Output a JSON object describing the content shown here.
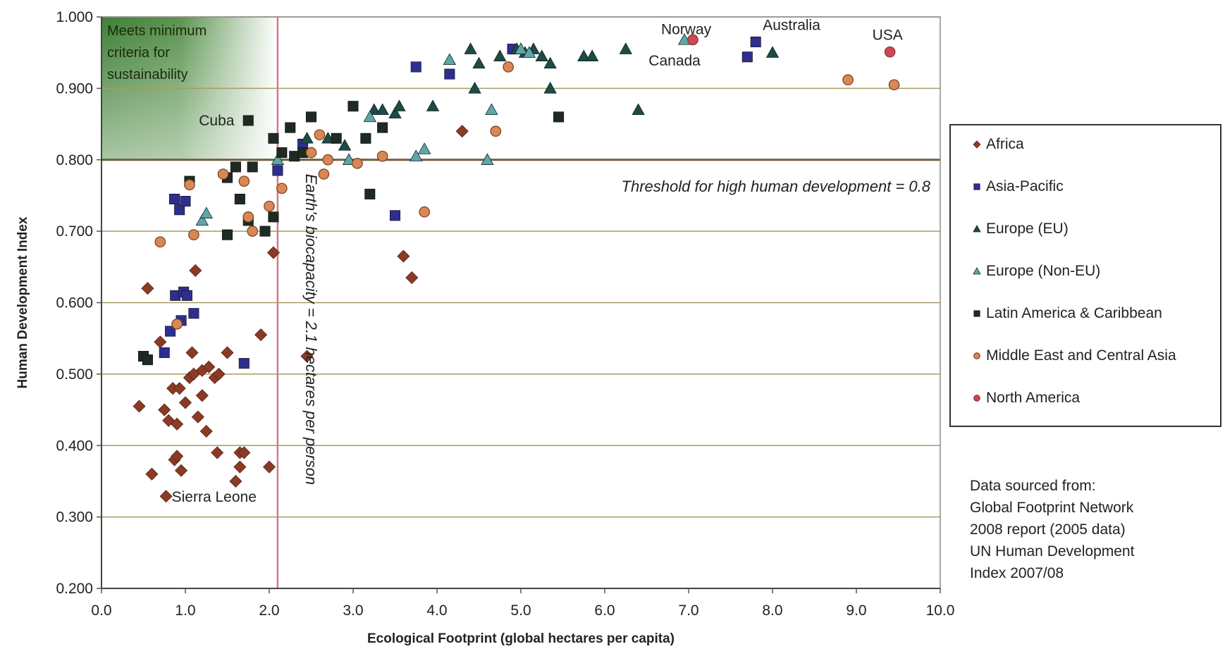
{
  "chart_data": {
    "type": "scatter",
    "xlabel": "Ecological Footprint (global hectares per capita)",
    "ylabel": "Human Development Index",
    "xlim": [
      0,
      10
    ],
    "ylim": [
      0.2,
      1.0
    ],
    "x_ticks": [
      "0.0",
      "1.0",
      "2.0",
      "3.0",
      "4.0",
      "5.0",
      "6.0",
      "7.0",
      "8.0",
      "9.0",
      "10.0"
    ],
    "y_ticks": [
      "0.200",
      "0.300",
      "0.400",
      "0.500",
      "0.600",
      "0.700",
      "0.800",
      "0.900",
      "1.000"
    ],
    "grid": "horizontal",
    "legend_position": "right",
    "reference_lines": {
      "hdi_threshold": {
        "value": 0.8,
        "label": "Threshold for high human development = 0.8"
      },
      "biocapacity": {
        "value": 2.1,
        "label": "Earth's biocapacity = 2.1 hectares per person"
      }
    },
    "sustainability_box": {
      "x": [
        0,
        2.1
      ],
      "y": [
        0.8,
        1.0
      ],
      "label": [
        "Meets minimum",
        "criteria for",
        "sustainability"
      ]
    },
    "annotations": [
      {
        "text": "Norway",
        "x": 7.05,
        "y": 0.968
      },
      {
        "text": "Australia",
        "x": 7.8,
        "y": 0.965
      },
      {
        "text": "USA",
        "x": 9.4,
        "y": 0.951
      },
      {
        "text": "Canada",
        "x": 7.7,
        "y": 0.944
      },
      {
        "text": "Cuba",
        "x": 1.75,
        "y": 0.855
      },
      {
        "text": "Sierra Leone",
        "x": 0.77,
        "y": 0.329
      }
    ],
    "series": [
      {
        "name": "Africa",
        "marker": "diamond",
        "color": "#8B3A26",
        "points": [
          [
            0.45,
            0.455
          ],
          [
            0.55,
            0.62
          ],
          [
            0.6,
            0.36
          ],
          [
            0.7,
            0.545
          ],
          [
            0.75,
            0.45
          ],
          [
            0.77,
            0.329
          ],
          [
            0.8,
            0.435
          ],
          [
            0.85,
            0.48
          ],
          [
            0.87,
            0.38
          ],
          [
            0.9,
            0.43
          ],
          [
            0.9,
            0.385
          ],
          [
            0.93,
            0.48
          ],
          [
            0.95,
            0.365
          ],
          [
            1.0,
            0.46
          ],
          [
            1.05,
            0.495
          ],
          [
            1.08,
            0.53
          ],
          [
            1.1,
            0.5
          ],
          [
            1.12,
            0.645
          ],
          [
            1.15,
            0.44
          ],
          [
            1.2,
            0.47
          ],
          [
            1.2,
            0.505
          ],
          [
            1.25,
            0.42
          ],
          [
            1.28,
            0.51
          ],
          [
            1.35,
            0.495
          ],
          [
            1.38,
            0.39
          ],
          [
            1.4,
            0.5
          ],
          [
            1.5,
            0.53
          ],
          [
            1.6,
            0.35
          ],
          [
            1.65,
            0.39
          ],
          [
            1.65,
            0.37
          ],
          [
            1.7,
            0.39
          ],
          [
            1.9,
            0.555
          ],
          [
            2.0,
            0.37
          ],
          [
            2.05,
            0.67
          ],
          [
            2.45,
            0.525
          ],
          [
            3.6,
            0.665
          ],
          [
            3.7,
            0.635
          ],
          [
            4.3,
            0.84
          ]
        ]
      },
      {
        "name": "Asia-Pacific",
        "marker": "square",
        "color": "#2E2E8F",
        "points": [
          [
            0.75,
            0.53
          ],
          [
            0.82,
            0.56
          ],
          [
            0.87,
            0.745
          ],
          [
            0.88,
            0.61
          ],
          [
            0.93,
            0.73
          ],
          [
            0.95,
            0.575
          ],
          [
            0.98,
            0.615
          ],
          [
            1.0,
            0.742
          ],
          [
            1.02,
            0.61
          ],
          [
            1.1,
            0.585
          ],
          [
            1.7,
            0.515
          ],
          [
            2.1,
            0.785
          ],
          [
            2.4,
            0.822
          ],
          [
            3.5,
            0.722
          ],
          [
            3.75,
            0.93
          ],
          [
            4.15,
            0.92
          ],
          [
            4.9,
            0.955
          ],
          [
            7.7,
            0.944
          ],
          [
            7.8,
            0.965
          ]
        ]
      },
      {
        "name": "Europe (EU)",
        "marker": "triangle",
        "color": "#1F4A46",
        "points": [
          [
            2.45,
            0.83
          ],
          [
            2.7,
            0.83
          ],
          [
            2.9,
            0.82
          ],
          [
            3.25,
            0.87
          ],
          [
            3.35,
            0.87
          ],
          [
            3.5,
            0.865
          ],
          [
            3.55,
            0.875
          ],
          [
            3.95,
            0.875
          ],
          [
            4.4,
            0.955
          ],
          [
            4.45,
            0.9
          ],
          [
            4.5,
            0.935
          ],
          [
            4.75,
            0.945
          ],
          [
            4.95,
            0.955
          ],
          [
            5.05,
            0.95
          ],
          [
            5.15,
            0.955
          ],
          [
            5.25,
            0.945
          ],
          [
            5.35,
            0.935
          ],
          [
            5.35,
            0.9
          ],
          [
            5.75,
            0.945
          ],
          [
            5.85,
            0.945
          ],
          [
            6.25,
            0.955
          ],
          [
            6.4,
            0.87
          ],
          [
            8.0,
            0.95
          ]
        ]
      },
      {
        "name": "Europe (Non-EU)",
        "marker": "triangle",
        "color": "#5FA6A8",
        "points": [
          [
            1.2,
            0.715
          ],
          [
            1.25,
            0.725
          ],
          [
            2.1,
            0.8
          ],
          [
            2.95,
            0.8
          ],
          [
            3.2,
            0.86
          ],
          [
            3.75,
            0.805
          ],
          [
            3.85,
            0.815
          ],
          [
            4.15,
            0.94
          ],
          [
            4.6,
            0.8
          ],
          [
            4.65,
            0.87
          ],
          [
            5.0,
            0.955
          ],
          [
            5.1,
            0.95
          ],
          [
            6.95,
            0.968
          ]
        ]
      },
      {
        "name": "Latin America & Caribbean",
        "marker": "square",
        "color": "#1E2A22",
        "points": [
          [
            0.5,
            0.525
          ],
          [
            0.55,
            0.52
          ],
          [
            1.05,
            0.77
          ],
          [
            1.5,
            0.775
          ],
          [
            1.5,
            0.695
          ],
          [
            1.6,
            0.79
          ],
          [
            1.65,
            0.745
          ],
          [
            1.75,
            0.715
          ],
          [
            1.75,
            0.855
          ],
          [
            1.8,
            0.79
          ],
          [
            1.95,
            0.7
          ],
          [
            2.05,
            0.83
          ],
          [
            2.05,
            0.72
          ],
          [
            2.15,
            0.81
          ],
          [
            2.25,
            0.845
          ],
          [
            2.3,
            0.805
          ],
          [
            2.4,
            0.81
          ],
          [
            2.5,
            0.86
          ],
          [
            2.8,
            0.83
          ],
          [
            3.0,
            0.875
          ],
          [
            3.15,
            0.83
          ],
          [
            3.2,
            0.752
          ],
          [
            3.35,
            0.845
          ],
          [
            5.45,
            0.86
          ]
        ]
      },
      {
        "name": "Middle East and Central Asia",
        "marker": "circle",
        "color": "#D98754",
        "points": [
          [
            0.7,
            0.685
          ],
          [
            0.9,
            0.57
          ],
          [
            1.05,
            0.765
          ],
          [
            1.1,
            0.695
          ],
          [
            1.45,
            0.78
          ],
          [
            1.7,
            0.77
          ],
          [
            1.75,
            0.72
          ],
          [
            1.8,
            0.7
          ],
          [
            2.0,
            0.735
          ],
          [
            2.15,
            0.76
          ],
          [
            2.5,
            0.81
          ],
          [
            2.6,
            0.835
          ],
          [
            2.65,
            0.78
          ],
          [
            2.7,
            0.8
          ],
          [
            3.05,
            0.795
          ],
          [
            3.35,
            0.805
          ],
          [
            3.85,
            0.727
          ],
          [
            4.7,
            0.84
          ],
          [
            4.85,
            0.93
          ],
          [
            8.9,
            0.912
          ],
          [
            9.45,
            0.905
          ]
        ]
      },
      {
        "name": "North America",
        "marker": "circle",
        "color": "#D2445E",
        "points": [
          [
            7.05,
            0.968
          ],
          [
            9.4,
            0.951
          ]
        ]
      }
    ]
  },
  "source_note": [
    "Data sourced from:",
    "Global Footprint Network",
    "2008 report (2005 data)",
    "UN Human Development",
    "Index 2007/08"
  ]
}
